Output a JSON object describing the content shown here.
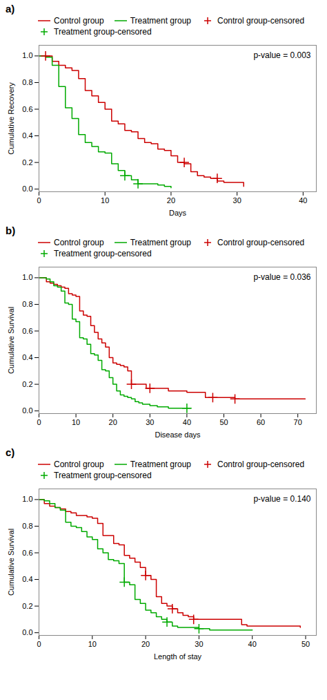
{
  "chart_data": [
    {
      "type": "step",
      "title": "a)",
      "x_label": "Days",
      "y_label": "Cumulative Recovery",
      "annotations": [
        {
          "text": "p-value = 0.003"
        }
      ],
      "xlim": [
        0,
        42
      ],
      "xticks": [
        0,
        10,
        20,
        30,
        40
      ],
      "ylim": [
        -0.02,
        1.08
      ],
      "yticks": [
        {
          "value": 0,
          "label": "0.0"
        },
        0.2,
        0.4,
        0.6,
        0.8,
        {
          "value": 1,
          "label": "1.0"
        }
      ],
      "grid": false,
      "legend": "top",
      "series": [
        {
          "name": "Control group",
          "type": "step",
          "color": "#cc0000",
          "x": [
            0,
            1,
            2,
            3,
            4,
            5,
            6,
            7,
            8,
            9,
            10,
            11,
            12,
            13,
            14,
            15,
            16,
            17,
            18,
            19,
            20,
            21,
            22,
            23,
            24,
            25,
            26,
            27,
            28,
            29,
            30,
            31
          ],
          "values": [
            1.0,
            1.0,
            0.96,
            0.93,
            0.91,
            0.89,
            0.83,
            0.74,
            0.7,
            0.65,
            0.6,
            0.51,
            0.49,
            0.44,
            0.43,
            0.38,
            0.35,
            0.34,
            0.3,
            0.29,
            0.25,
            0.2,
            0.19,
            0.13,
            0.1,
            0.09,
            0.08,
            0.06,
            0.05,
            0.05,
            0.05,
            0.02
          ]
        },
        {
          "name": "Treatment group",
          "type": "step",
          "color": "#00aa00",
          "x": [
            0,
            1,
            2,
            3,
            4,
            5,
            6,
            7,
            8,
            9,
            10,
            11,
            12,
            13,
            14,
            15,
            16,
            17,
            18,
            19,
            20
          ],
          "values": [
            1.0,
            0.99,
            0.93,
            0.77,
            0.61,
            0.53,
            0.41,
            0.35,
            0.32,
            0.28,
            0.27,
            0.19,
            0.14,
            0.1,
            0.07,
            0.04,
            0.04,
            0.04,
            0.03,
            0.02,
            0.01
          ]
        },
        {
          "name": "Control group-censored",
          "type": "scatter",
          "marker": "plus",
          "color": "#cc0000",
          "x": [
            1,
            22,
            27
          ],
          "values": [
            1.0,
            0.2,
            0.08
          ]
        },
        {
          "name": "Treatment group-censored",
          "type": "scatter",
          "marker": "plus",
          "color": "#00aa00",
          "x": [
            13,
            15
          ],
          "values": [
            0.1,
            0.04
          ]
        }
      ]
    },
    {
      "type": "step",
      "title": "b)",
      "x_label": "Disease days",
      "y_label": "Cumulative Survival",
      "annotations": [
        {
          "text": "p-value = 0.036"
        }
      ],
      "xlim": [
        0,
        75
      ],
      "xticks": [
        0,
        10,
        20,
        30,
        40,
        50,
        60,
        70
      ],
      "ylim": [
        -0.02,
        1.08
      ],
      "yticks": [
        {
          "value": 0,
          "label": "0.0"
        },
        0.2,
        0.4,
        0.6,
        0.8,
        {
          "value": 1,
          "label": "1.0"
        }
      ],
      "grid": false,
      "legend": "top",
      "series": [
        {
          "name": "Control group",
          "type": "step",
          "color": "#cc0000",
          "x": [
            0,
            1,
            2,
            3,
            4,
            5,
            6,
            7,
            8,
            9,
            10,
            11,
            12,
            13,
            14,
            15,
            16,
            17,
            18,
            19,
            20,
            21,
            22,
            23,
            24,
            25,
            26,
            27,
            28,
            29,
            30,
            35,
            40,
            45,
            47,
            50,
            53,
            55,
            60,
            70,
            72
          ],
          "values": [
            1.0,
            1.0,
            0.97,
            0.96,
            0.95,
            0.94,
            0.93,
            0.92,
            0.88,
            0.87,
            0.86,
            0.75,
            0.72,
            0.71,
            0.64,
            0.59,
            0.54,
            0.51,
            0.48,
            0.4,
            0.36,
            0.35,
            0.34,
            0.33,
            0.3,
            0.2,
            0.2,
            0.2,
            0.2,
            0.17,
            0.17,
            0.15,
            0.14,
            0.1,
            0.1,
            0.1,
            0.09,
            0.09,
            0.09,
            0.09,
            0.09
          ]
        },
        {
          "name": "Treatment group",
          "type": "step",
          "color": "#00aa00",
          "x": [
            0,
            1,
            2,
            3,
            4,
            5,
            6,
            7,
            8,
            9,
            10,
            11,
            12,
            13,
            14,
            15,
            16,
            17,
            18,
            19,
            20,
            21,
            22,
            23,
            24,
            25,
            26,
            27,
            28,
            30,
            32,
            35,
            40,
            41
          ],
          "values": [
            1.0,
            1.0,
            0.99,
            0.97,
            0.94,
            0.93,
            0.9,
            0.81,
            0.8,
            0.69,
            0.67,
            0.55,
            0.54,
            0.5,
            0.43,
            0.42,
            0.38,
            0.31,
            0.3,
            0.25,
            0.2,
            0.15,
            0.12,
            0.11,
            0.1,
            0.09,
            0.07,
            0.06,
            0.05,
            0.04,
            0.03,
            0.02,
            0.02,
            0.02
          ]
        },
        {
          "name": "Control group-censored",
          "type": "scatter",
          "marker": "plus",
          "color": "#cc0000",
          "x": [
            25,
            30,
            47,
            53
          ],
          "values": [
            0.2,
            0.17,
            0.1,
            0.09
          ]
        },
        {
          "name": "Treatment group-censored",
          "type": "scatter",
          "marker": "plus",
          "color": "#00aa00",
          "x": [
            40
          ],
          "values": [
            0.02
          ]
        }
      ]
    },
    {
      "type": "step",
      "title": "c)",
      "x_label": "Length of stay",
      "y_label": "Cumulative Survival",
      "annotations": [
        {
          "text": "p-value = 0.140"
        }
      ],
      "xlim": [
        0,
        52
      ],
      "xticks": [
        0,
        10,
        20,
        30,
        40,
        50
      ],
      "ylim": [
        -0.02,
        1.08
      ],
      "yticks": [
        {
          "value": 0,
          "label": "0.0"
        },
        0.2,
        0.4,
        0.6,
        0.8,
        {
          "value": 1,
          "label": "1.0"
        }
      ],
      "grid": false,
      "legend": "top",
      "series": [
        {
          "name": "Control group",
          "type": "step",
          "color": "#cc0000",
          "x": [
            0,
            1,
            2,
            3,
            4,
            5,
            6,
            7,
            8,
            9,
            10,
            11,
            12,
            13,
            14,
            15,
            16,
            17,
            18,
            19,
            20,
            21,
            22,
            23,
            24,
            25,
            26,
            27,
            28,
            29,
            30,
            33,
            35,
            38,
            39,
            40,
            48,
            49
          ],
          "values": [
            1.0,
            0.97,
            0.95,
            0.94,
            0.93,
            0.91,
            0.9,
            0.88,
            0.88,
            0.87,
            0.86,
            0.82,
            0.73,
            0.73,
            0.67,
            0.66,
            0.58,
            0.56,
            0.53,
            0.49,
            0.43,
            0.4,
            0.27,
            0.22,
            0.2,
            0.18,
            0.15,
            0.13,
            0.12,
            0.1,
            0.1,
            0.1,
            0.1,
            0.06,
            0.05,
            0.05,
            0.05,
            0.04
          ]
        },
        {
          "name": "Treatment group",
          "type": "step",
          "color": "#00aa00",
          "x": [
            0,
            1,
            2,
            3,
            4,
            5,
            6,
            7,
            8,
            9,
            10,
            11,
            12,
            13,
            14,
            15,
            16,
            17,
            18,
            19,
            20,
            21,
            22,
            23,
            24,
            25,
            26,
            27,
            28,
            30,
            32,
            35,
            37,
            38,
            40
          ],
          "values": [
            1.0,
            0.99,
            0.97,
            0.94,
            0.92,
            0.83,
            0.8,
            0.79,
            0.76,
            0.72,
            0.7,
            0.63,
            0.6,
            0.55,
            0.54,
            0.52,
            0.38,
            0.36,
            0.25,
            0.22,
            0.17,
            0.15,
            0.12,
            0.1,
            0.08,
            0.05,
            0.04,
            0.04,
            0.04,
            0.03,
            0.02,
            0.02,
            0.02,
            0.02,
            0.02
          ]
        },
        {
          "name": "Control group-censored",
          "type": "scatter",
          "marker": "plus",
          "color": "#cc0000",
          "x": [
            20,
            25,
            29
          ],
          "values": [
            0.43,
            0.18,
            0.1
          ]
        },
        {
          "name": "Treatment group-censored",
          "type": "scatter",
          "marker": "plus",
          "color": "#00aa00",
          "x": [
            16,
            24,
            30
          ],
          "values": [
            0.38,
            0.08,
            0.03
          ]
        }
      ]
    }
  ]
}
